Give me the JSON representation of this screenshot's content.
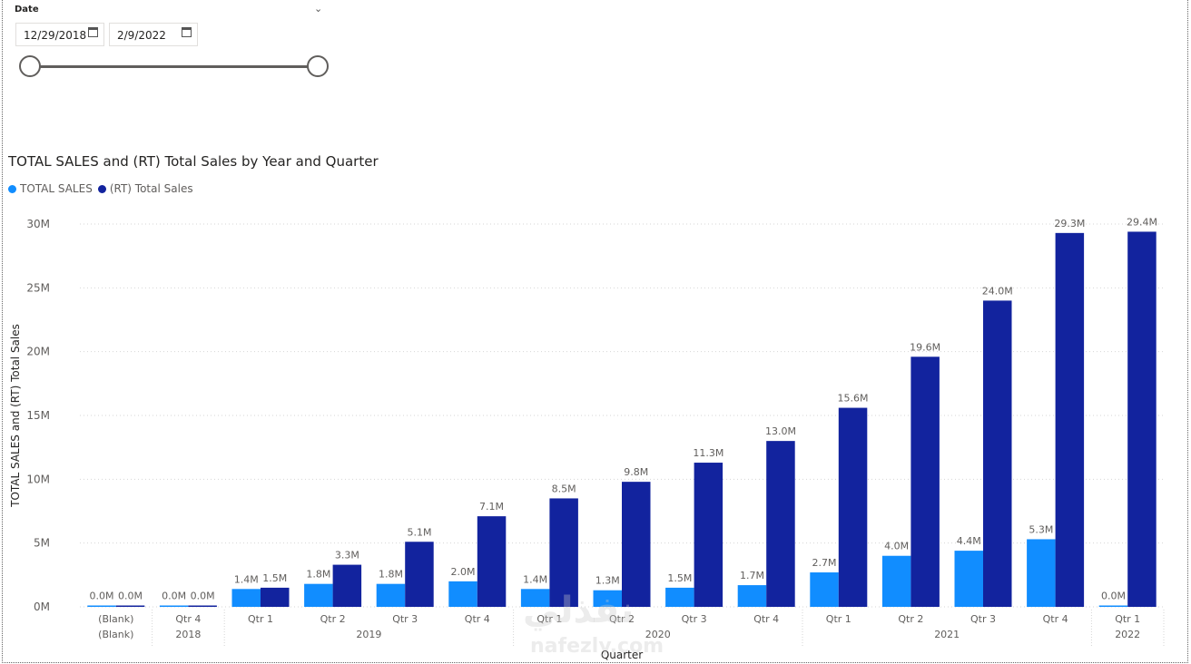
{
  "slicer": {
    "title": "Date",
    "start": "12/29/2018",
    "end": "2/9/2022",
    "calendar_icon": "calendar-icon",
    "expand_icon": "chevron-down-icon"
  },
  "watermark": {
    "arabic": "نفذلي",
    "latin": "nafezly.com"
  },
  "chart_data": {
    "type": "bar",
    "title": "TOTAL SALES and (RT) Total Sales by Year and Quarter",
    "xlabel": "Quarter",
    "ylabel": "TOTAL SALES and (RT) Total Sales",
    "ylim": [
      0,
      30000000
    ],
    "yticks": [
      "0M",
      "5M",
      "10M",
      "15M",
      "20M",
      "25M",
      "30M"
    ],
    "categories": [
      "(Blank)",
      "Qtr 4",
      "Qtr 1",
      "Qtr 2",
      "Qtr 3",
      "Qtr 4",
      "Qtr 1",
      "Qtr 2",
      "Qtr 3",
      "Qtr 4",
      "Qtr 1",
      "Qtr 2",
      "Qtr 3",
      "Qtr 4",
      "Qtr 1"
    ],
    "groups": [
      {
        "label": "(Blank)",
        "from": 0,
        "to": 0
      },
      {
        "label": "2018",
        "from": 1,
        "to": 1
      },
      {
        "label": "2019",
        "from": 2,
        "to": 5
      },
      {
        "label": "2020",
        "from": 6,
        "to": 9
      },
      {
        "label": "2021",
        "from": 10,
        "to": 13
      },
      {
        "label": "2022",
        "from": 14,
        "to": 14
      }
    ],
    "series": [
      {
        "name": "TOTAL SALES",
        "color": "#118DFF",
        "values": [
          0,
          0,
          1.4,
          1.8,
          1.8,
          2.0,
          1.4,
          1.3,
          1.5,
          1.7,
          2.7,
          4.0,
          4.4,
          5.3,
          0
        ],
        "labels": [
          "0.0M",
          "0.0M",
          "1.4M",
          "1.8M",
          "1.8M",
          "2.0M",
          "1.4M",
          "1.3M",
          "1.5M",
          "1.7M",
          "2.7M",
          "4.0M",
          "4.4M",
          "5.3M",
          "0.0M"
        ]
      },
      {
        "name": "(RT) Total Sales",
        "color": "#12239E",
        "values": [
          0,
          0,
          1.5,
          3.3,
          5.1,
          7.1,
          8.5,
          9.8,
          11.3,
          13.0,
          15.6,
          19.6,
          24.0,
          29.3,
          29.4
        ],
        "labels": [
          "0.0M",
          "0.0M",
          "1.5M",
          "3.3M",
          "5.1M",
          "7.1M",
          "8.5M",
          "9.8M",
          "11.3M",
          "13.0M",
          "15.6M",
          "19.6M",
          "24.0M",
          "29.3M",
          "29.4M"
        ]
      }
    ],
    "value_unit_multiplier": 1000000,
    "grid": true,
    "legend_position": "top-left"
  }
}
